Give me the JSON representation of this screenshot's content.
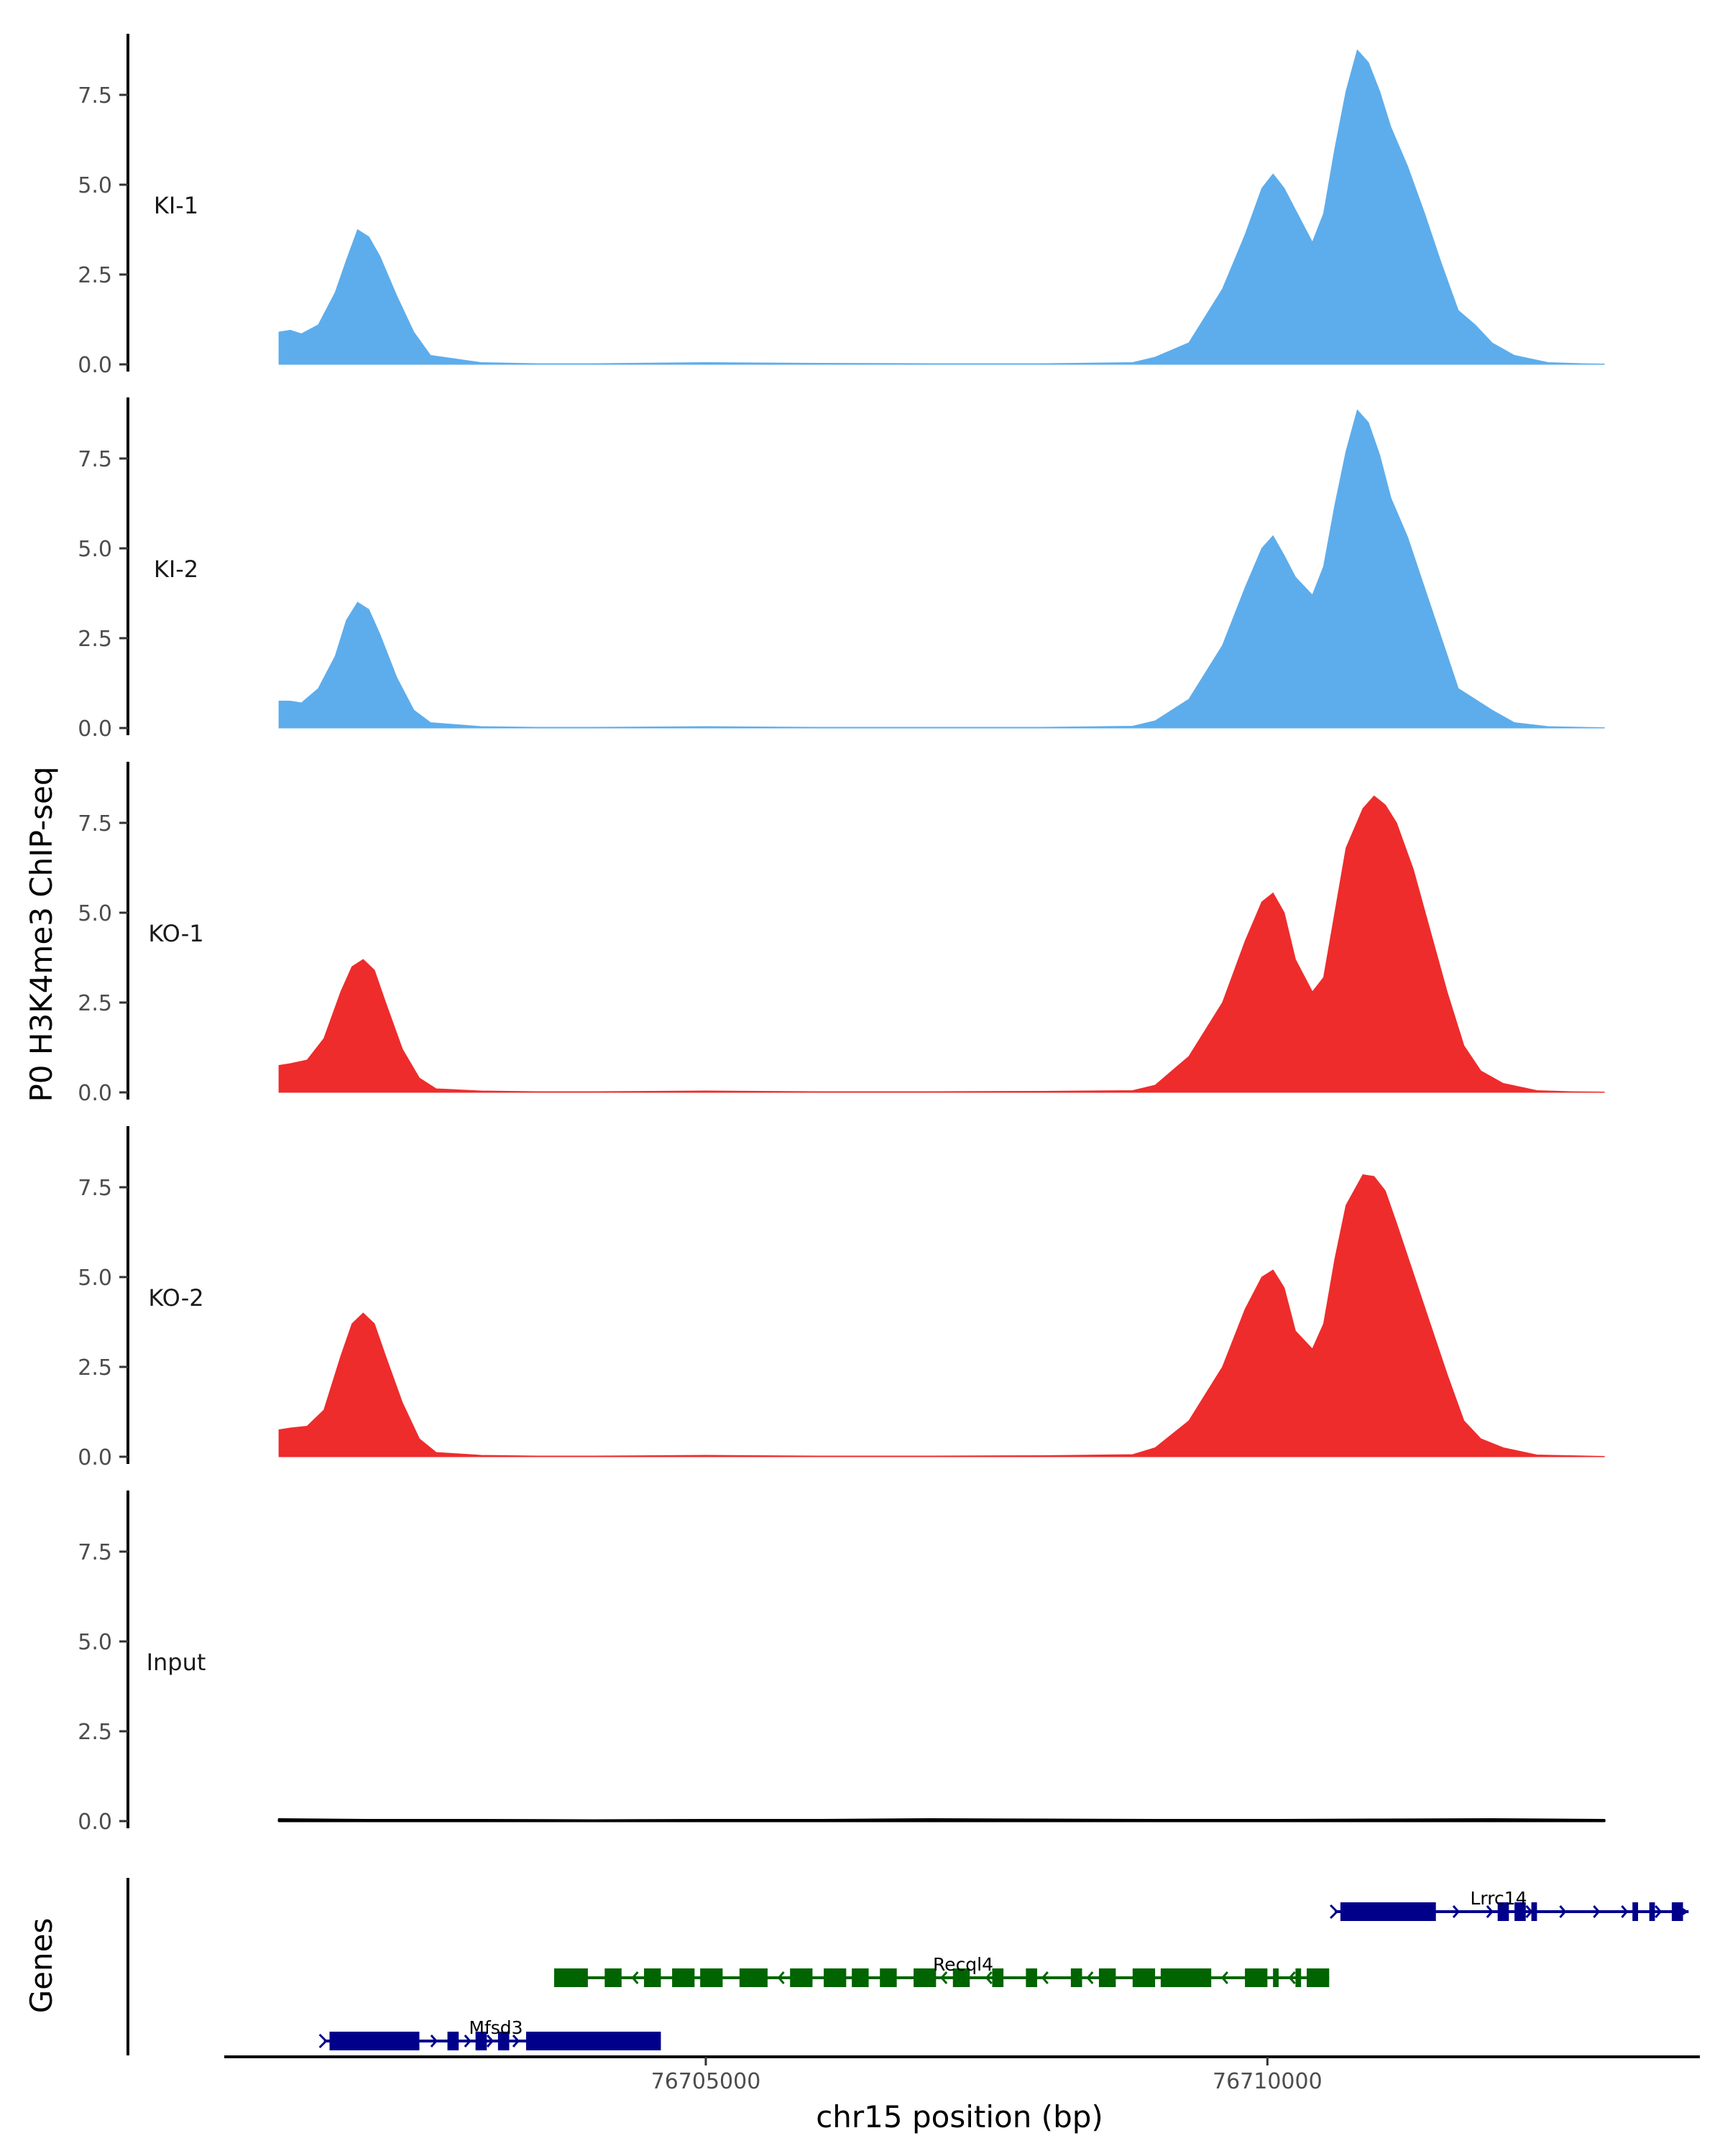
{
  "chart_data": {
    "type": "area",
    "title": "",
    "ylabel": "P0 H3K4me3 ChIP-seq",
    "xlabel": "chr15 position (bp)",
    "xlim": [
      76700700,
      76713850
    ],
    "ylim": [
      0,
      9.2
    ],
    "y_ticks": [
      0.0,
      2.5,
      5.0,
      7.5
    ],
    "y_tick_labels": [
      "0.0",
      "2.5",
      "5.0",
      "7.5"
    ],
    "x_ticks": [
      76705000,
      76710000
    ],
    "x_tick_labels": [
      "76705000",
      "76710000"
    ],
    "colors": {
      "KI": "#5DADEC",
      "KO": "#EE2C2C",
      "Input": "#000000",
      "gene_plus": "#00008B",
      "gene_minus": "#006400"
    },
    "tracks": [
      {
        "name": "KI-1",
        "group": "KI",
        "x": [
          76701200,
          76701300,
          76701400,
          76701550,
          76701700,
          76701800,
          76701900,
          76702000,
          76702100,
          76702250,
          76702400,
          76702550,
          76703000,
          76703500,
          76704000,
          76705000,
          76706000,
          76707000,
          76708000,
          76708800,
          76709000,
          76709300,
          76709600,
          76709800,
          76709950,
          76710050,
          76710150,
          76710250,
          76710400,
          76710500,
          76710600,
          76710700,
          76710800,
          76710900,
          76711000,
          76711100,
          76711250,
          76711400,
          76711550,
          76711700,
          76711850,
          76712000,
          76712200,
          76712500,
          76712800,
          76713000
        ],
        "y": [
          0.9,
          0.95,
          0.85,
          1.1,
          2.0,
          2.9,
          3.75,
          3.55,
          3.0,
          1.9,
          0.9,
          0.25,
          0.05,
          0.02,
          0.02,
          0.05,
          0.03,
          0.02,
          0.02,
          0.05,
          0.2,
          0.6,
          2.1,
          3.6,
          4.9,
          5.3,
          4.9,
          4.3,
          3.4,
          4.2,
          6.0,
          7.6,
          8.75,
          8.4,
          7.6,
          6.6,
          5.5,
          4.2,
          2.8,
          1.5,
          1.1,
          0.6,
          0.25,
          0.05,
          0.02,
          0.01
        ]
      },
      {
        "name": "KI-2",
        "group": "KI",
        "x": [
          76701200,
          76701300,
          76701400,
          76701550,
          76701700,
          76701800,
          76701900,
          76702000,
          76702100,
          76702250,
          76702400,
          76702550,
          76703000,
          76703500,
          76704000,
          76705000,
          76706000,
          76707000,
          76708000,
          76708800,
          76709000,
          76709300,
          76709600,
          76709800,
          76709950,
          76710050,
          76710150,
          76710250,
          76710400,
          76710500,
          76710600,
          76710700,
          76710800,
          76710900,
          76711000,
          76711100,
          76711250,
          76711400,
          76711550,
          76711700,
          76711850,
          76712000,
          76712200,
          76712500,
          76712800,
          76713000
        ],
        "y": [
          0.75,
          0.75,
          0.7,
          1.1,
          2.0,
          3.0,
          3.5,
          3.3,
          2.6,
          1.4,
          0.5,
          0.15,
          0.04,
          0.02,
          0.02,
          0.04,
          0.02,
          0.02,
          0.02,
          0.05,
          0.2,
          0.8,
          2.3,
          3.9,
          5.0,
          5.35,
          4.8,
          4.2,
          3.7,
          4.5,
          6.2,
          7.7,
          8.85,
          8.5,
          7.6,
          6.4,
          5.3,
          3.9,
          2.5,
          1.1,
          0.8,
          0.5,
          0.15,
          0.04,
          0.02,
          0.01
        ]
      },
      {
        "name": "KO-1",
        "group": "KO",
        "x": [
          76701200,
          76701300,
          76701450,
          76701600,
          76701750,
          76701850,
          76701950,
          76702050,
          76702150,
          76702300,
          76702450,
          76702600,
          76703000,
          76703500,
          76704000,
          76705000,
          76706000,
          76707000,
          76708000,
          76708800,
          76709000,
          76709300,
          76709600,
          76709800,
          76709950,
          76710050,
          76710150,
          76710250,
          76710400,
          76710500,
          76710600,
          76710700,
          76710850,
          76710950,
          76711050,
          76711150,
          76711300,
          76711450,
          76711600,
          76711750,
          76711900,
          76712100,
          76712400,
          76712700,
          76713000
        ],
        "y": [
          0.75,
          0.8,
          0.9,
          1.5,
          2.8,
          3.5,
          3.7,
          3.4,
          2.5,
          1.2,
          0.4,
          0.1,
          0.04,
          0.02,
          0.02,
          0.04,
          0.02,
          0.02,
          0.03,
          0.05,
          0.2,
          1.0,
          2.5,
          4.2,
          5.3,
          5.55,
          5.0,
          3.7,
          2.8,
          3.2,
          5.0,
          6.8,
          7.9,
          8.25,
          8.0,
          7.5,
          6.2,
          4.5,
          2.8,
          1.3,
          0.6,
          0.25,
          0.05,
          0.02,
          0.01
        ]
      },
      {
        "name": "KO-2",
        "group": "KO",
        "x": [
          76701200,
          76701300,
          76701450,
          76701600,
          76701750,
          76701850,
          76701950,
          76702050,
          76702150,
          76702300,
          76702450,
          76702600,
          76703000,
          76703500,
          76704000,
          76705000,
          76706000,
          76707000,
          76708000,
          76708800,
          76709000,
          76709300,
          76709600,
          76709800,
          76709950,
          76710050,
          76710150,
          76710250,
          76710400,
          76710500,
          76710600,
          76710700,
          76710850,
          76710950,
          76711050,
          76711150,
          76711300,
          76711450,
          76711600,
          76711750,
          76711900,
          76712100,
          76712400,
          76712700,
          76713000
        ],
        "y": [
          0.75,
          0.8,
          0.85,
          1.3,
          2.8,
          3.7,
          4.0,
          3.7,
          2.8,
          1.5,
          0.5,
          0.12,
          0.04,
          0.02,
          0.02,
          0.04,
          0.02,
          0.02,
          0.03,
          0.06,
          0.25,
          1.0,
          2.5,
          4.1,
          5.0,
          5.2,
          4.7,
          3.5,
          3.0,
          3.7,
          5.5,
          7.0,
          7.85,
          7.8,
          7.4,
          6.5,
          5.1,
          3.7,
          2.3,
          1.0,
          0.5,
          0.25,
          0.05,
          0.03,
          0.01
        ]
      },
      {
        "name": "Input",
        "group": "Input",
        "x": [
          76701200,
          76702000,
          76703000,
          76704000,
          76705000,
          76706000,
          76707000,
          76708000,
          76709000,
          76710000,
          76711000,
          76712000,
          76713000
        ],
        "y": [
          0.05,
          0.03,
          0.03,
          0.02,
          0.03,
          0.03,
          0.05,
          0.04,
          0.03,
          0.03,
          0.04,
          0.05,
          0.03
        ]
      }
    ],
    "genes_track": {
      "label": "Genes",
      "genes": [
        {
          "name": "Lrrc14",
          "strand": "+",
          "row": 0,
          "start": 76710600,
          "end": 76713750,
          "exons": [
            [
              76710650,
              76711500
            ],
            [
              76712050,
              76712150
            ],
            [
              76712200,
              76712300
            ],
            [
              76712350,
              76712400
            ],
            [
              76713250,
              76713300
            ],
            [
              76713400,
              76713450
            ],
            [
              76713600,
              76713700
            ]
          ],
          "arrows": [
            76711700,
            76712000,
            76712350,
            76712650,
            76712950,
            76713200,
            76713500
          ]
        },
        {
          "name": "Recql4",
          "strand": "-",
          "row": 1,
          "start": 76703650,
          "end": 76710550,
          "exons": [
            [
              76703650,
              76703950
            ],
            [
              76704100,
              76704250
            ],
            [
              76704450,
              76704600
            ],
            [
              76704700,
              76704900
            ],
            [
              76704950,
              76705150
            ],
            [
              76705300,
              76705550
            ],
            [
              76705750,
              76705950
            ],
            [
              76706050,
              76706250
            ],
            [
              76706300,
              76706450
            ],
            [
              76706550,
              76706700
            ],
            [
              76706850,
              76707050
            ],
            [
              76707200,
              76707350
            ],
            [
              76707550,
              76707650
            ],
            [
              76707850,
              76707950
            ],
            [
              76708250,
              76708350
            ],
            [
              76708500,
              76708650
            ],
            [
              76708800,
              76709000
            ],
            [
              76709050,
              76709500
            ],
            [
              76709800,
              76710000
            ],
            [
              76710050,
              76710100
            ],
            [
              76710250,
              76710300
            ],
            [
              76710350,
              76710550
            ]
          ],
          "arrows": [
            76704350,
            76705650,
            76707100,
            76707500,
            76708000,
            76708400,
            76709600,
            76710200
          ]
        },
        {
          "name": "Mfsd3",
          "strand": "+",
          "row": 2,
          "start": 76701600,
          "end": 76704600,
          "exons": [
            [
              76701650,
              76702450
            ],
            [
              76702700,
              76702800
            ],
            [
              76702950,
              76703050
            ],
            [
              76703150,
              76703250
            ],
            [
              76703400,
              76704600
            ]
          ],
          "arrows": [
            76702600,
            76702900,
            76703100,
            76703330
          ]
        }
      ]
    }
  }
}
